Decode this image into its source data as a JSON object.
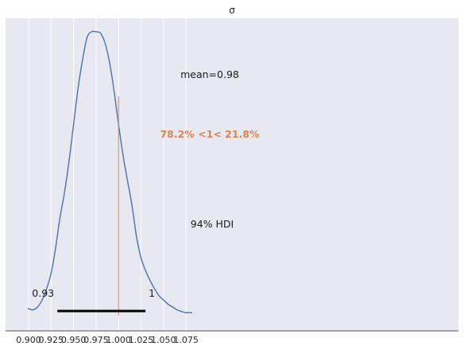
{
  "chart_data": {
    "type": "line",
    "title": "σ",
    "xlabel": "",
    "ylabel": "",
    "xlim": [
      0.89,
      1.09
    ],
    "grid": true,
    "x_ticks": [
      0.9,
      0.925,
      0.95,
      0.975,
      1.0,
      1.025,
      1.05,
      1.075
    ],
    "x_tick_labels": [
      "0.900",
      "0.925",
      "0.950",
      "0.975",
      "1.000",
      "1.025",
      "1.050",
      "1.075"
    ],
    "series": [
      {
        "x": [
          0.899,
          0.905,
          0.91,
          0.915,
          0.92,
          0.925,
          0.93,
          0.935,
          0.94,
          0.945,
          0.95,
          0.955,
          0.96,
          0.965,
          0.97,
          0.975,
          0.98,
          0.985,
          0.99,
          0.995,
          1.0,
          1.005,
          1.01,
          1.015,
          1.02,
          1.025,
          1.03,
          1.035,
          1.04,
          1.045,
          1.05,
          1.055,
          1.06,
          1.065,
          1.07,
          1.075,
          1.082
        ],
        "y": [
          0.015,
          0.01,
          0.02,
          0.045,
          0.085,
          0.14,
          0.23,
          0.34,
          0.43,
          0.54,
          0.67,
          0.8,
          0.9,
          0.98,
          1.0,
          1.0,
          0.995,
          0.96,
          0.89,
          0.79,
          0.67,
          0.56,
          0.47,
          0.38,
          0.27,
          0.195,
          0.15,
          0.115,
          0.085,
          0.06,
          0.045,
          0.03,
          0.02,
          0.01,
          0.004,
          0.0,
          0.0
        ]
      }
    ],
    "mean_label": "mean=0.98",
    "ref_value": 1.0,
    "ref_label": "78.2% <1< 21.8%",
    "ref_color": "#dd8452",
    "hdi_label": "94% HDI",
    "hdi": [
      0.932,
      1.03
    ],
    "hdi_low_label": "0.93",
    "hdi_high_label": "1"
  }
}
